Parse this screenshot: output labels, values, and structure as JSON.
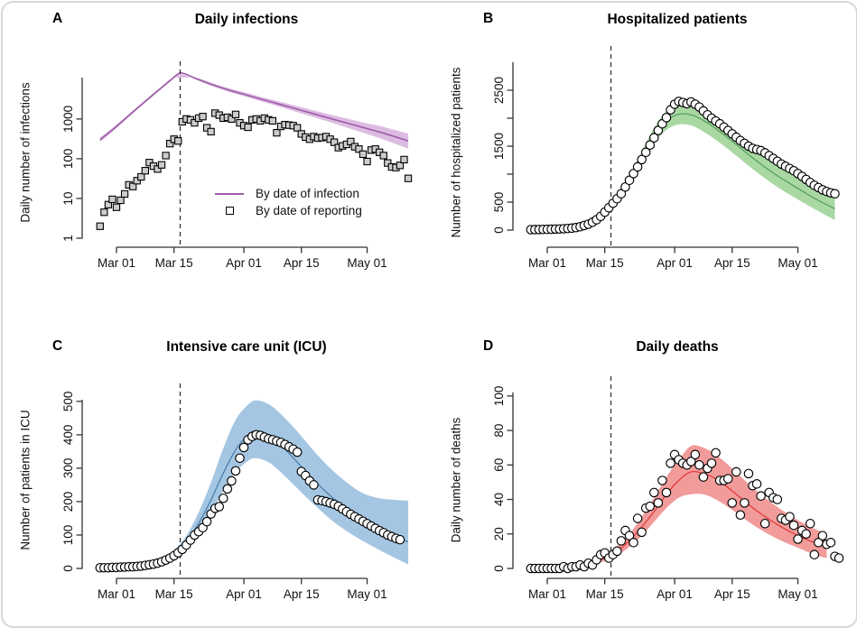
{
  "chart_data": [
    {
      "label": "A",
      "title": "Daily infections",
      "ylabel": "Daily number of infections",
      "type": "line+scatter",
      "yscale": "log",
      "ylim": [
        1,
        11000
      ],
      "yticks": [
        {
          "v": 1,
          "label": "1"
        },
        {
          "v": 10,
          "label": "10"
        },
        {
          "v": 100,
          "label": "100"
        },
        {
          "v": 1000,
          "label": "1000"
        }
      ],
      "xticks": [
        {
          "v": 0,
          "label": "Mar 01"
        },
        {
          "v": 14,
          "label": "Mar 15"
        },
        {
          "v": 31,
          "label": "Apr 01"
        },
        {
          "v": 45,
          "label": "Apr 15"
        },
        {
          "v": 61,
          "label": "May 01"
        }
      ],
      "dashed_x": 15.5,
      "colors": {
        "line": "#9d5ca8",
        "band": "#ddbce2"
      },
      "marker": "square",
      "legend": [
        {
          "type": "line",
          "label": "By date of infection"
        },
        {
          "type": "square",
          "label": "By date of reporting"
        }
      ],
      "model": {
        "x": [
          -4,
          0,
          4,
          8,
          11,
          13,
          14.5,
          15.5,
          16.5,
          18,
          20,
          24,
          28,
          31,
          35,
          40,
          45,
          50,
          55,
          60,
          65,
          71
        ],
        "mean": [
          300,
          650,
          1500,
          3400,
          6200,
          9200,
          12500,
          14500,
          13800,
          12000,
          9800,
          6900,
          5100,
          4200,
          3200,
          2300,
          1650,
          1180,
          850,
          610,
          440,
          280
        ],
        "lo": [
          265,
          590,
          1380,
          3150,
          5800,
          8600,
          11700,
          13600,
          12900,
          11200,
          9100,
          6300,
          4600,
          3750,
          2820,
          1980,
          1380,
          960,
          660,
          450,
          305,
          180
        ],
        "hi": [
          340,
          715,
          1630,
          3680,
          6650,
          9900,
          13400,
          15500,
          14800,
          12900,
          10600,
          7600,
          5700,
          4750,
          3650,
          2680,
          1980,
          1450,
          1090,
          820,
          630,
          430
        ]
      },
      "observed": {
        "start_day": -4,
        "values": [
          2,
          4.5,
          7,
          9.5,
          6,
          9,
          13,
          22,
          20,
          28,
          35,
          50,
          80,
          65,
          55,
          70,
          120,
          240,
          310,
          280,
          850,
          1000,
          950,
          800,
          1050,
          1150,
          600,
          480,
          1400,
          1250,
          1050,
          1100,
          1000,
          1300,
          800,
          680,
          620,
          950,
          1000,
          900,
          1050,
          950,
          900,
          450,
          650,
          720,
          700,
          680,
          600,
          420,
          350,
          310,
          360,
          330,
          340,
          360,
          310,
          260,
          190,
          210,
          230,
          270,
          200,
          175,
          130,
          85,
          165,
          175,
          145,
          120,
          78,
          62,
          60,
          68,
          95,
          32
        ]
      }
    },
    {
      "label": "B",
      "title": "Hospitalized patients",
      "ylabel": "Number of hospitalized patients",
      "type": "line+scatter",
      "yscale": "linear",
      "ylim": [
        0,
        3000
      ],
      "yticks": [
        {
          "v": 0,
          "label": "0"
        },
        {
          "v": 500,
          "label": "500"
        },
        {
          "v": 1000,
          "label": ""
        },
        {
          "v": 1500,
          "label": "1500"
        },
        {
          "v": 2000,
          "label": ""
        },
        {
          "v": 2500,
          "label": "2500"
        }
      ],
      "xticks": [
        {
          "v": 0,
          "label": "Mar 01"
        },
        {
          "v": 14,
          "label": "Mar 15"
        },
        {
          "v": 31,
          "label": "Apr 01"
        },
        {
          "v": 45,
          "label": "Apr 15"
        },
        {
          "v": 61,
          "label": "May 01"
        }
      ],
      "dashed_x": 15.5,
      "colors": {
        "line": "#57a05e",
        "band": "#a9d8a3"
      },
      "marker": "circle",
      "model": {
        "x": [
          -4,
          0,
          5,
          10,
          14,
          18,
          22,
          26,
          29,
          32,
          35,
          38,
          42,
          46,
          50,
          55,
          60,
          65,
          70
        ],
        "mean": [
          4,
          10,
          30,
          100,
          270,
          620,
          1150,
          1680,
          1950,
          2070,
          2060,
          1960,
          1760,
          1530,
          1290,
          1020,
          790,
          570,
          380
        ],
        "lo": [
          3,
          8,
          26,
          88,
          240,
          560,
          1050,
          1540,
          1790,
          1890,
          1870,
          1760,
          1560,
          1330,
          1090,
          820,
          590,
          380,
          180
        ],
        "hi": [
          5,
          12,
          35,
          113,
          300,
          680,
          1260,
          1830,
          2120,
          2260,
          2270,
          2180,
          1980,
          1750,
          1510,
          1250,
          1020,
          800,
          610
        ]
      },
      "observed": {
        "start_day": -4,
        "values": [
          8,
          9,
          10,
          12,
          13,
          15,
          18,
          20,
          24,
          28,
          35,
          45,
          60,
          82,
          105,
          140,
          185,
          245,
          320,
          400,
          480,
          560,
          650,
          770,
          890,
          1010,
          1130,
          1260,
          1390,
          1520,
          1650,
          1780,
          1900,
          2010,
          2150,
          2250,
          2300,
          2280,
          2260,
          2290,
          2250,
          2200,
          2130,
          2060,
          2000,
          1950,
          1900,
          1840,
          1780,
          1720,
          1660,
          1600,
          1550,
          1500,
          1460,
          1440,
          1420,
          1380,
          1330,
          1280,
          1230,
          1180,
          1140,
          1100,
          1060,
          1010,
          960,
          905,
          850,
          800,
          760,
          720,
          690,
          665,
          650
        ]
      }
    },
    {
      "label": "C",
      "title": "Intensive care unit (ICU)",
      "ylabel": "Number of patients in ICU",
      "type": "line+scatter",
      "yscale": "linear",
      "ylim": [
        0,
        505
      ],
      "yticks": [
        {
          "v": 0,
          "label": "0"
        },
        {
          "v": 100,
          "label": "100"
        },
        {
          "v": 200,
          "label": "200"
        },
        {
          "v": 300,
          "label": "300"
        },
        {
          "v": 400,
          "label": "400"
        },
        {
          "v": 500,
          "label": "500"
        }
      ],
      "xticks": [
        {
          "v": 0,
          "label": "Mar 01"
        },
        {
          "v": 14,
          "label": "Mar 15"
        },
        {
          "v": 31,
          "label": "Apr 01"
        },
        {
          "v": 45,
          "label": "Apr 15"
        },
        {
          "v": 61,
          "label": "May 01"
        }
      ],
      "dashed_x": 15.5,
      "colors": {
        "line": "#4d7fae",
        "band": "#a4c6e2"
      },
      "marker": "circle",
      "model": {
        "x": [
          -4,
          0,
          5,
          10,
          14,
          17,
          20,
          23,
          26,
          29,
          32,
          34,
          37,
          40,
          44,
          48,
          52,
          56,
          60,
          64,
          68,
          71
        ],
        "mean": [
          1,
          2,
          6,
          17,
          45,
          80,
          135,
          205,
          285,
          355,
          400,
          412,
          400,
          370,
          318,
          265,
          218,
          178,
          143,
          115,
          92,
          80
        ],
        "lo": [
          1,
          1,
          5,
          14,
          38,
          66,
          110,
          168,
          232,
          288,
          322,
          330,
          318,
          288,
          240,
          192,
          148,
          112,
          82,
          55,
          30,
          12
        ],
        "hi": [
          2,
          3,
          8,
          21,
          55,
          98,
          168,
          258,
          360,
          445,
          490,
          503,
          492,
          462,
          410,
          352,
          300,
          258,
          225,
          210,
          205,
          203
        ]
      },
      "observed": {
        "start_day": -4,
        "values": [
          2,
          2,
          2,
          3,
          3,
          4,
          4,
          5,
          5,
          6,
          7,
          9,
          11,
          13,
          16,
          20,
          25,
          31,
          38,
          47,
          57,
          70,
          85,
          100,
          110,
          122,
          140,
          163,
          180,
          185,
          210,
          238,
          262,
          292,
          330,
          362,
          385,
          395,
          400,
          398,
          393,
          388,
          385,
          381,
          377,
          371,
          364,
          357,
          348,
          290,
          278,
          262,
          250,
          205,
          203,
          200,
          196,
          192,
          186,
          178,
          170,
          162,
          155,
          148,
          141,
          134,
          127,
          120,
          113,
          107,
          100,
          95,
          90,
          86
        ]
      }
    },
    {
      "label": "D",
      "title": "Daily deaths",
      "ylabel": "Daily number of deaths",
      "type": "line+scatter",
      "yscale": "linear",
      "ylim": [
        0,
        102
      ],
      "yticks": [
        {
          "v": 0,
          "label": "0"
        },
        {
          "v": 20,
          "label": "20"
        },
        {
          "v": 40,
          "label": "40"
        },
        {
          "v": 60,
          "label": "60"
        },
        {
          "v": 80,
          "label": "80"
        },
        {
          "v": 100,
          "label": "100"
        }
      ],
      "xticks": [
        {
          "v": 0,
          "label": "Mar 01"
        },
        {
          "v": 14,
          "label": "Mar 15"
        },
        {
          "v": 31,
          "label": "Apr 01"
        },
        {
          "v": 45,
          "label": "Apr 15"
        },
        {
          "v": 61,
          "label": "May 01"
        }
      ],
      "dashed_x": 15.5,
      "colors": {
        "line": "#e23b3b",
        "band": "#f19b9b"
      },
      "marker": "circle",
      "model": {
        "x": [
          2,
          6,
          10,
          14,
          17,
          20,
          23,
          26,
          29,
          32,
          35,
          38,
          41,
          45,
          49,
          53,
          57,
          61,
          65,
          68
        ],
        "mean": [
          0.4,
          1,
          2.5,
          6,
          10,
          16,
          24,
          33,
          43,
          51,
          56,
          55,
          52,
          45,
          37,
          30,
          24,
          19,
          15,
          13
        ],
        "lo": [
          0.2,
          0.6,
          1.8,
          4.4,
          7.5,
          12.5,
          19,
          27,
          35,
          41,
          43,
          43,
          40,
          34,
          27,
          21,
          16,
          12,
          8,
          6
        ],
        "hi": [
          0.8,
          1.7,
          3.6,
          8.2,
          13,
          20,
          30,
          41,
          53,
          63,
          71,
          70,
          66,
          58,
          49,
          41,
          34,
          28,
          23,
          20
        ]
      },
      "observed": {
        "start_day": -4,
        "values": [
          0,
          0,
          0,
          0,
          0,
          0,
          0,
          0,
          1,
          0,
          1,
          1,
          2,
          1,
          3,
          2,
          5,
          8,
          9,
          6,
          8,
          10,
          16,
          22,
          19,
          15,
          29,
          21,
          35,
          36,
          44,
          38,
          51,
          44,
          61,
          66,
          63,
          61,
          60,
          62,
          66,
          60,
          53,
          58,
          61,
          67,
          51,
          51,
          52,
          38,
          56,
          31,
          38,
          55,
          48,
          49,
          42,
          26,
          44,
          41,
          40,
          29,
          28,
          30,
          25,
          17,
          22,
          20,
          26,
          8,
          15,
          19,
          14,
          15,
          7,
          6
        ]
      }
    }
  ]
}
